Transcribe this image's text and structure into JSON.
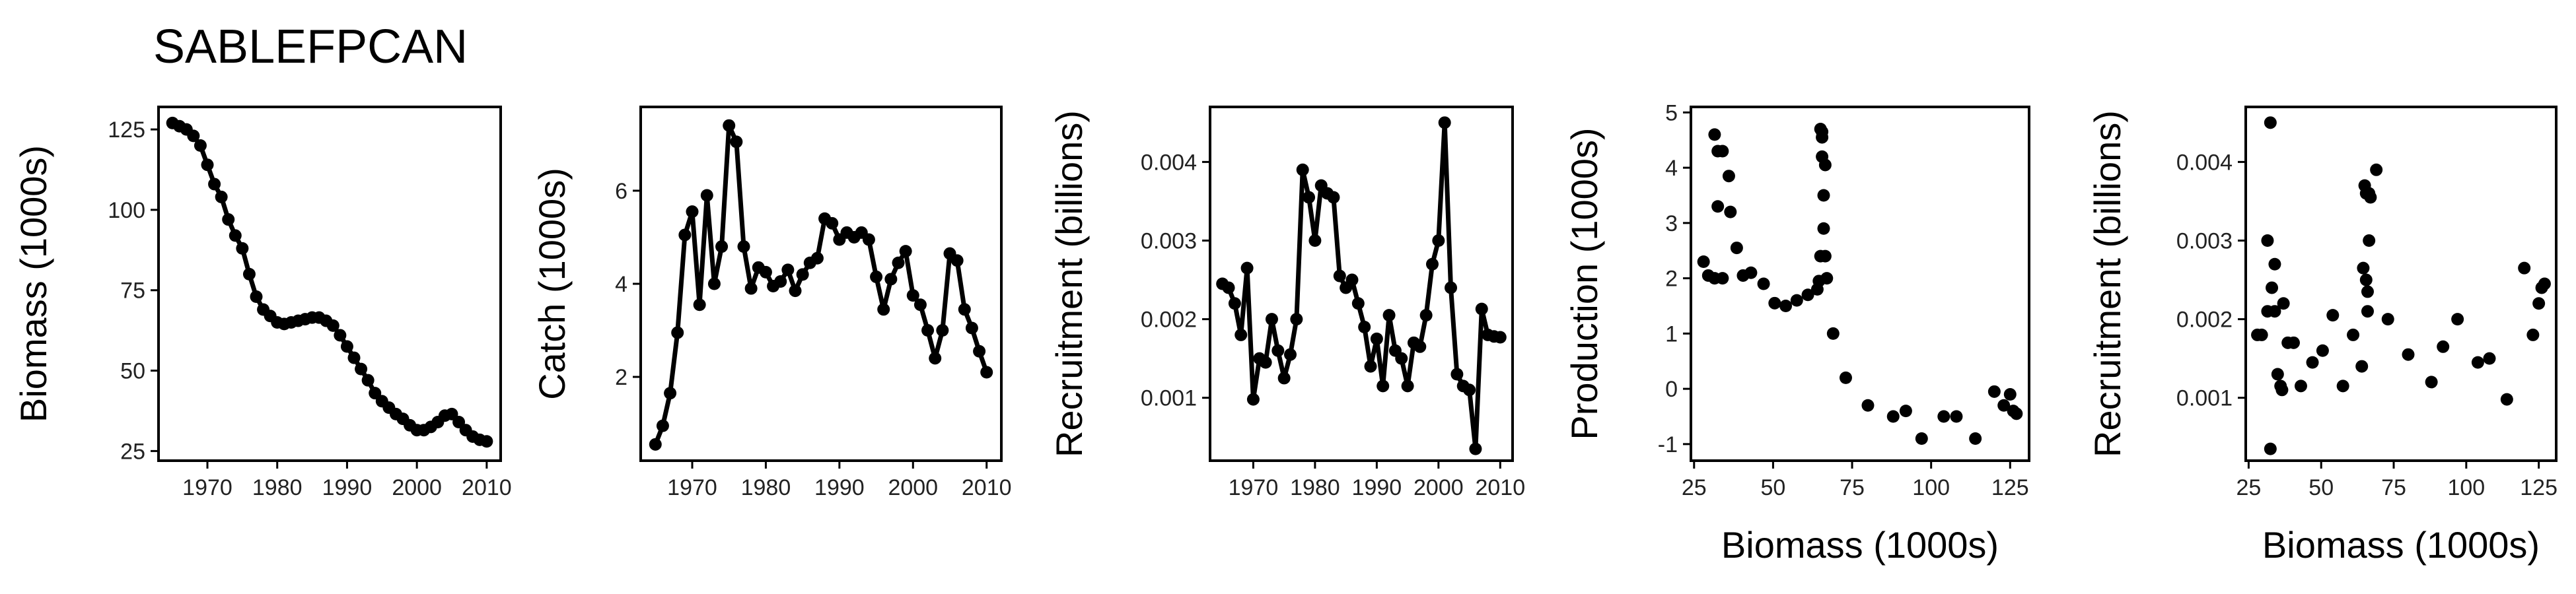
{
  "title": "SABLEFPCAN",
  "colors": {
    "ink": "#000000",
    "frame": "#000000",
    "background": "#ffffff"
  },
  "chart_data": [
    {
      "type": "line",
      "xlabel": "",
      "ylabel": "Biomass (1000s)",
      "xlim": [
        1963,
        2012
      ],
      "ylim": [
        22,
        132
      ],
      "xticks": [
        1970,
        1980,
        1990,
        2000,
        2010
      ],
      "xtick_labels": [
        "1970",
        "1980",
        "1990",
        "2000",
        "2010"
      ],
      "yticks": [
        25,
        50,
        75,
        100,
        125
      ],
      "ytick_labels": [
        "25",
        "50",
        "75",
        "100",
        "125"
      ],
      "markers": true,
      "x": [
        1965,
        1966,
        1967,
        1968,
        1969,
        1970,
        1971,
        1972,
        1973,
        1974,
        1975,
        1976,
        1977,
        1978,
        1979,
        1980,
        1981,
        1982,
        1983,
        1984,
        1985,
        1986,
        1987,
        1988,
        1989,
        1990,
        1991,
        1992,
        1993,
        1994,
        1995,
        1996,
        1997,
        1998,
        1999,
        2000,
        2001,
        2002,
        2003,
        2004,
        2005,
        2006,
        2007,
        2008,
        2009,
        2010
      ],
      "y": [
        127,
        126,
        125,
        123,
        120,
        114,
        108,
        104,
        97,
        92,
        88,
        80,
        73,
        69,
        67,
        65,
        64.5,
        65,
        65.5,
        66,
        66.5,
        66.5,
        65.5,
        64,
        61,
        57.5,
        54,
        50.5,
        47,
        43,
        40.5,
        38.5,
        36.5,
        35,
        33,
        31.5,
        31.5,
        32.5,
        34,
        36,
        36.5,
        34,
        31.5,
        29.5,
        28.5,
        28
      ]
    },
    {
      "type": "line",
      "xlabel": "",
      "ylabel": "Catch (1000s)",
      "xlim": [
        1963,
        2012
      ],
      "ylim": [
        0.2,
        7.8
      ],
      "xticks": [
        1970,
        1980,
        1990,
        2000,
        2010
      ],
      "xtick_labels": [
        "1970",
        "1980",
        "1990",
        "2000",
        "2010"
      ],
      "yticks": [
        2,
        4,
        6
      ],
      "ytick_labels": [
        "2",
        "4",
        "6"
      ],
      "markers": true,
      "x": [
        1965,
        1966,
        1967,
        1968,
        1969,
        1970,
        1971,
        1972,
        1973,
        1974,
        1975,
        1976,
        1977,
        1978,
        1979,
        1980,
        1981,
        1982,
        1983,
        1984,
        1985,
        1986,
        1987,
        1988,
        1989,
        1990,
        1991,
        1992,
        1993,
        1994,
        1995,
        1996,
        1997,
        1998,
        1999,
        2000,
        2001,
        2002,
        2003,
        2004,
        2005,
        2006,
        2007,
        2008,
        2009,
        2010
      ],
      "y": [
        0.55,
        0.95,
        1.65,
        2.95,
        5.05,
        5.55,
        3.55,
        5.9,
        4.0,
        4.8,
        7.4,
        7.05,
        4.8,
        3.9,
        4.35,
        4.25,
        3.95,
        4.05,
        4.3,
        3.85,
        4.2,
        4.45,
        4.55,
        5.4,
        5.3,
        4.95,
        5.1,
        5.0,
        5.1,
        4.95,
        4.15,
        3.45,
        4.1,
        4.45,
        4.7,
        3.75,
        3.55,
        3.0,
        2.4,
        3.0,
        4.65,
        4.5,
        3.45,
        3.05,
        2.55,
        2.1
      ]
    },
    {
      "type": "line",
      "xlabel": "",
      "ylabel": "Recruitment (billions)",
      "xlim": [
        1963,
        2012
      ],
      "ylim": [
        0.0002,
        0.0047
      ],
      "xticks": [
        1970,
        1980,
        1990,
        2000,
        2010
      ],
      "xtick_labels": [
        "1970",
        "1980",
        "1990",
        "2000",
        "2010"
      ],
      "yticks": [
        0.001,
        0.002,
        0.003,
        0.004
      ],
      "ytick_labels": [
        "0.001",
        "0.002",
        "0.003",
        "0.004"
      ],
      "markers": true,
      "x": [
        1965,
        1966,
        1967,
        1968,
        1969,
        1970,
        1971,
        1972,
        1973,
        1974,
        1975,
        1976,
        1977,
        1978,
        1979,
        1980,
        1981,
        1982,
        1983,
        1984,
        1985,
        1986,
        1987,
        1988,
        1989,
        1990,
        1991,
        1992,
        1993,
        1994,
        1995,
        1996,
        1997,
        1998,
        1999,
        2000,
        2001,
        2002,
        2003,
        2004,
        2005,
        2006,
        2007,
        2008,
        2009,
        2010
      ],
      "y": [
        0.00245,
        0.0024,
        0.0022,
        0.0018,
        0.00265,
        0.00098,
        0.0015,
        0.00145,
        0.002,
        0.0016,
        0.00125,
        0.00155,
        0.002,
        0.0039,
        0.00355,
        0.003,
        0.0037,
        0.0036,
        0.00355,
        0.00255,
        0.0024,
        0.0025,
        0.0022,
        0.0019,
        0.0014,
        0.00175,
        0.00115,
        0.00205,
        0.0016,
        0.0015,
        0.00115,
        0.0017,
        0.00165,
        0.00205,
        0.0027,
        0.003,
        0.0045,
        0.0024,
        0.0013,
        0.00115,
        0.0011,
        0.00035,
        0.00213,
        0.0018,
        0.00178,
        0.00177
      ]
    },
    {
      "type": "scatter",
      "xlabel": "Biomass (1000s)",
      "ylabel": "Production (1000s)",
      "xlim": [
        24,
        131
      ],
      "ylim": [
        -1.3,
        5.1
      ],
      "xticks": [
        25,
        50,
        75,
        100,
        125
      ],
      "xtick_labels": [
        "25",
        "50",
        "75",
        "100",
        "125"
      ],
      "yticks": [
        -1,
        0,
        1,
        2,
        3,
        4,
        5
      ],
      "ytick_labels": [
        "-1",
        "0",
        "1",
        "2",
        "3",
        "4",
        "5"
      ],
      "markers": true,
      "x": [
        28,
        29.5,
        31.5,
        31.5,
        32.5,
        32.5,
        34,
        34,
        36,
        36.5,
        38.5,
        40.5,
        43,
        47,
        50.5,
        54,
        57.5,
        61,
        64,
        64.5,
        65,
        65,
        65.5,
        65.5,
        65.5,
        66,
        66,
        66.5,
        66.5,
        67,
        69,
        73,
        80,
        88,
        92,
        97,
        104,
        108,
        114,
        120,
        123,
        125,
        126,
        127
      ],
      "y": [
        2.3,
        2.05,
        2.0,
        4.6,
        4.3,
        3.3,
        4.3,
        2.0,
        3.85,
        3.2,
        2.55,
        2.05,
        2.1,
        1.9,
        1.55,
        1.5,
        1.6,
        1.7,
        1.8,
        1.95,
        2.4,
        4.7,
        4.65,
        4.2,
        4.55,
        3.5,
        2.9,
        4.05,
        2.4,
        2.0,
        1.0,
        0.2,
        -0.3,
        -0.5,
        -0.4,
        -0.9,
        -0.5,
        -0.5,
        -0.9,
        -0.05,
        -0.3,
        -0.1,
        -0.4,
        -0.45
      ]
    },
    {
      "type": "scatter",
      "xlabel": "Biomass (1000s)",
      "ylabel": "Recruitment (billions)",
      "xlim": [
        24,
        131
      ],
      "ylim": [
        0.0002,
        0.0047
      ],
      "xticks": [
        25,
        50,
        75,
        100,
        125
      ],
      "xtick_labels": [
        "25",
        "50",
        "75",
        "100",
        "125"
      ],
      "yticks": [
        0.001,
        0.002,
        0.003,
        0.004
      ],
      "ytick_labels": [
        "0.001",
        "0.002",
        "0.003",
        "0.004"
      ],
      "markers": true,
      "x": [
        28,
        29.5,
        31.5,
        31.5,
        32.5,
        32.5,
        33,
        34,
        34,
        35,
        36,
        36.5,
        37,
        38.5,
        40.5,
        43,
        47,
        50.5,
        54,
        57.5,
        61,
        64,
        64.5,
        65,
        65.5,
        65.5,
        66,
        66,
        66.5,
        66.5,
        67,
        69,
        73,
        80,
        88,
        92,
        97,
        104,
        108,
        114,
        120,
        123,
        125,
        126,
        127
      ],
      "y": [
        0.0018,
        0.0018,
        0.0021,
        0.003,
        0.0045,
        0.00035,
        0.0024,
        0.0027,
        0.0021,
        0.0013,
        0.00115,
        0.0011,
        0.0022,
        0.0017,
        0.0017,
        0.00115,
        0.00145,
        0.0016,
        0.00205,
        0.00115,
        0.0018,
        0.0014,
        0.00265,
        0.0037,
        0.0025,
        0.0036,
        0.00235,
        0.0021,
        0.0036,
        0.003,
        0.00355,
        0.0039,
        0.002,
        0.00155,
        0.0012,
        0.00165,
        0.002,
        0.00145,
        0.0015,
        0.00098,
        0.00265,
        0.0018,
        0.0022,
        0.0024,
        0.00245
      ]
    }
  ]
}
